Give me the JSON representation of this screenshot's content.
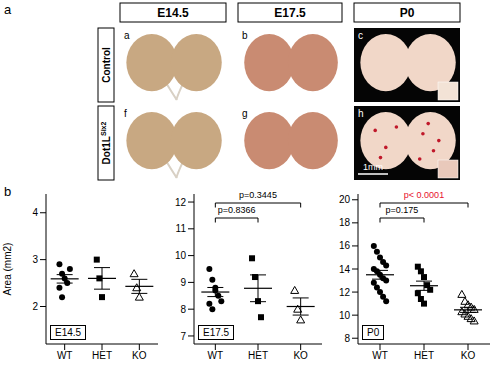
{
  "figure": {
    "panel_labels": [
      "a",
      "b"
    ],
    "columns": [
      "E14.5",
      "E17.5",
      "P0"
    ],
    "rows": [
      {
        "label": "Control",
        "superscript": null,
        "sublabels": [
          "a",
          "b",
          "c"
        ]
      },
      {
        "label": "Dot1L",
        "superscript": "Six2",
        "sublabels": [
          "f",
          "g",
          "h"
        ]
      }
    ],
    "scale_bar": "1mm"
  },
  "chart_data": [
    {
      "type": "scatter",
      "ylabel": "Area (mm2)",
      "stage": "E14.5",
      "categories": [
        "WT",
        "HET",
        "KO"
      ],
      "ylim": [
        1.2,
        4.4
      ],
      "yticks": [
        2,
        3,
        4
      ],
      "groups": [
        {
          "color": "#000000",
          "marker": "circle",
          "values": [
            2.9,
            2.7,
            2.6,
            2.5,
            2.8,
            2.4,
            2.2
          ],
          "mean": 2.59,
          "sem": 0.09
        },
        {
          "color": "#000000",
          "marker": "square",
          "values": [
            3.0,
            2.6,
            2.2
          ],
          "mean": 2.6,
          "sem": 0.23
        },
        {
          "color": "#000000",
          "marker": "triangle_open",
          "values": [
            2.7,
            2.4,
            2.2
          ],
          "mean": 2.43,
          "sem": 0.15
        }
      ],
      "annotations": []
    },
    {
      "type": "scatter",
      "stage": "E17.5",
      "categories": [
        "WT",
        "HET",
        "KO"
      ],
      "ylim": [
        6.7,
        12.3
      ],
      "yticks": [
        7,
        8,
        9,
        10,
        11,
        12
      ],
      "groups": [
        {
          "color": "#000000",
          "marker": "circle",
          "values": [
            9.5,
            9.1,
            8.7,
            8.5,
            8.3,
            8.2,
            8.0,
            8.8
          ],
          "mean": 8.64,
          "sem": 0.17
        },
        {
          "color": "#000000",
          "marker": "square",
          "values": [
            9.9,
            9.2,
            8.3,
            7.7
          ],
          "mean": 8.78,
          "sem": 0.5
        },
        {
          "color": "#000000",
          "marker": "triangle_open",
          "values": [
            8.7,
            8.0,
            7.6
          ],
          "mean": 8.1,
          "sem": 0.32
        }
      ],
      "annotations": [
        {
          "text": "p=0.3445",
          "from": "WT",
          "to": "KO",
          "color": "#000000"
        },
        {
          "text": "p=0.8366",
          "from": "WT",
          "to": "HET",
          "color": "#000000"
        }
      ]
    },
    {
      "type": "scatter",
      "stage": "P0",
      "categories": [
        "WT",
        "HET",
        "KO"
      ],
      "ylim": [
        7.5,
        20.5
      ],
      "yticks": [
        8,
        10,
        12,
        14,
        16,
        18,
        20
      ],
      "groups": [
        {
          "color": "#000000",
          "marker": "circle",
          "values": [
            16.0,
            15.5,
            15.0,
            14.6,
            14.3,
            14.0,
            13.8,
            13.5,
            13.2,
            13.0,
            12.8,
            12.4,
            12.0,
            11.6,
            11.2
          ],
          "mean": 13.5,
          "sem": 0.38
        },
        {
          "color": "#000000",
          "marker": "square",
          "values": [
            14.2,
            13.8,
            13.3,
            12.6,
            12.2,
            11.9,
            11.4,
            11.0
          ],
          "mean": 12.55,
          "sem": 0.4
        },
        {
          "color": "#000000",
          "marker": "triangle_open",
          "values": [
            11.8,
            11.2,
            10.9,
            10.7,
            10.5,
            10.3,
            10.1,
            9.9,
            9.7,
            9.5
          ],
          "mean": 10.46,
          "sem": 0.22
        }
      ],
      "annotations": [
        {
          "text": "p< 0.0001",
          "from": "WT",
          "to": "KO",
          "color": "#e8112d"
        },
        {
          "text": "p=0.175",
          "from": "WT",
          "to": "HET",
          "color": "#000000"
        }
      ]
    }
  ]
}
